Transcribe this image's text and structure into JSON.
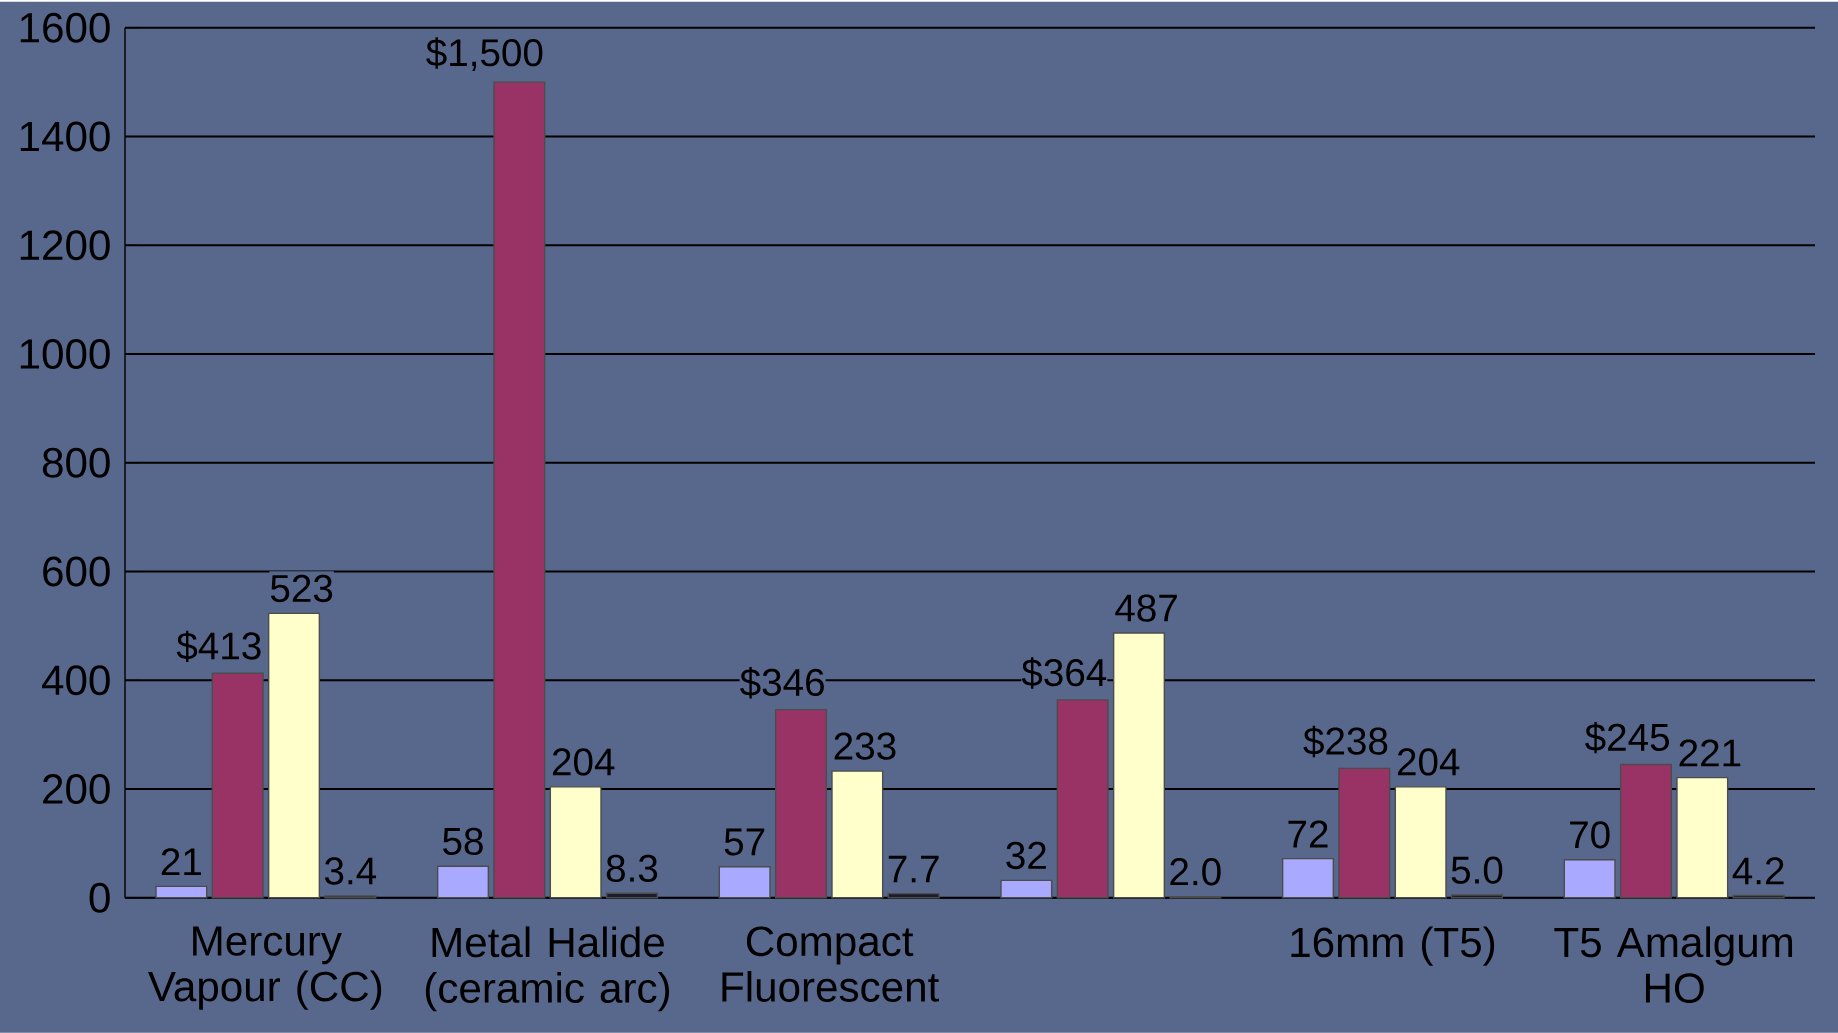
{
  "chart_data": {
    "type": "bar",
    "categories": [
      "Mercury Vapour (CC)",
      "Metal Halide (ceramic arc)",
      "Compact Fluorescent",
      null,
      "16mm (T5)",
      "T5 Amalgum HO"
    ],
    "series": [
      {
        "color": "#a9a9ff",
        "values": [
          21,
          58,
          57,
          32,
          72,
          70
        ],
        "value_labels": [
          "21",
          "58",
          "57",
          "32",
          "72",
          "70"
        ]
      },
      {
        "color": "#993366",
        "values": [
          413,
          1500,
          346,
          364,
          238,
          245
        ],
        "value_labels": [
          "$413",
          "$1,500",
          "$346",
          "$364",
          "$238",
          "$245"
        ]
      },
      {
        "color": "#ffffcc",
        "values": [
          523,
          204,
          233,
          487,
          204,
          221
        ],
        "value_labels": [
          "523",
          "204",
          "233",
          "487",
          "204",
          "221"
        ]
      },
      {
        "color": "#1c1c2c",
        "values": [
          3.4,
          8.3,
          7.7,
          2.0,
          5.0,
          4.2
        ],
        "value_labels": [
          "3.4",
          "8.3",
          "7.7",
          "2.0",
          "5.0",
          "4.2"
        ]
      }
    ],
    "ylim": [
      0,
      1600
    ],
    "yticks": [
      0,
      200,
      400,
      600,
      800,
      1000,
      1200,
      1400,
      1600
    ],
    "grid": "y"
  }
}
